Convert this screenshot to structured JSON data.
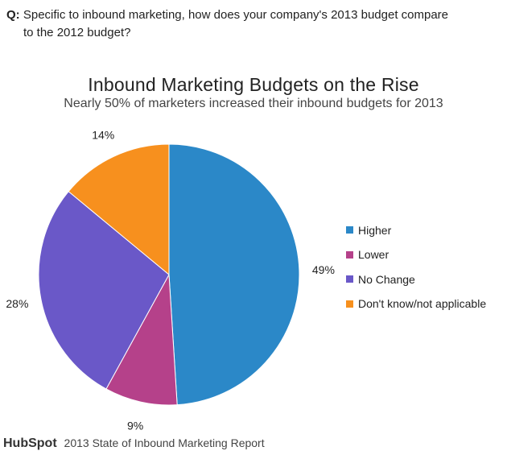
{
  "question": {
    "label": "Q:",
    "line1": "Specific to inbound marketing, how does your company's 2013 budget compare",
    "line2": "to the 2012 budget?"
  },
  "footer": {
    "brand": "HubSpot",
    "source": "2013 State of Inbound Marketing Report"
  },
  "chart_data": {
    "type": "pie",
    "title": "Inbound Marketing Budgets on the Rise",
    "subtitle": "Nearly 50% of marketers increased their inbound budgets for 2013",
    "legend_position": "right",
    "slices": [
      {
        "label": "Higher",
        "value": 49,
        "value_label": "49%",
        "color": "#2B88C8"
      },
      {
        "label": "Lower",
        "value": 9,
        "value_label": "9%",
        "color": "#B5418A"
      },
      {
        "label": "No Change",
        "value": 28,
        "value_label": "28%",
        "color": "#6A58C8"
      },
      {
        "label": "Don't know/not applicable",
        "value": 14,
        "value_label": "14%",
        "color": "#F7901E"
      }
    ]
  }
}
